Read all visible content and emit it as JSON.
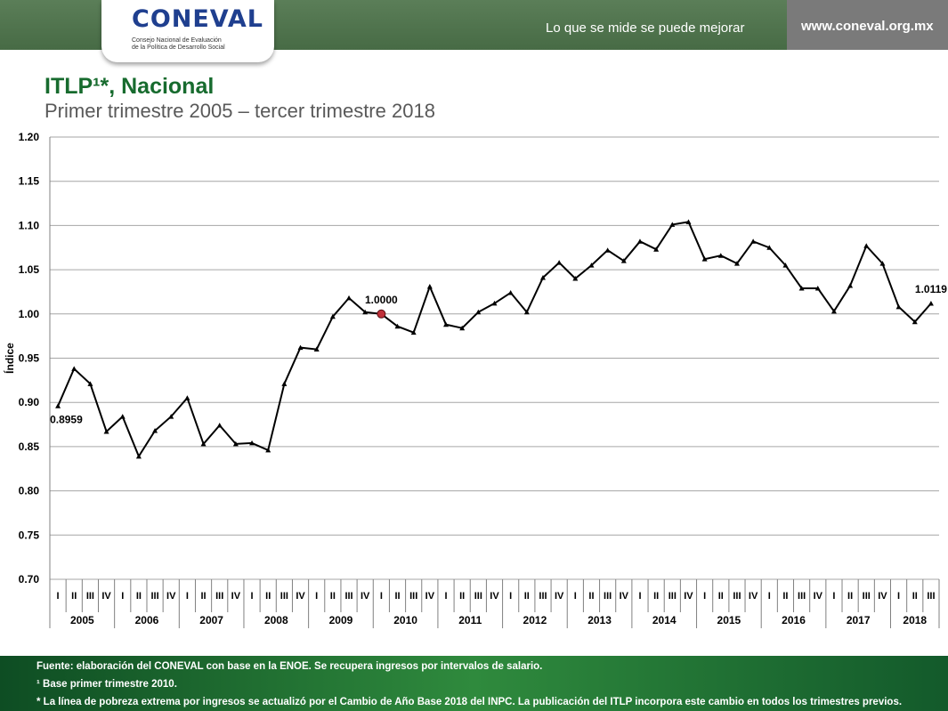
{
  "header": {
    "logo_text": "CONEVAL",
    "logo_subtitle_1": "Consejo Nacional de Evaluación",
    "logo_subtitle_2": "de la Política de Desarrollo Social",
    "slogan": "Lo que se mide se puede mejorar",
    "url": "www.coneval.org.mx",
    "colors": {
      "header_green": "#4f734d",
      "url_box": "#7a7a7a",
      "logo_blue": "#1f3f8f"
    }
  },
  "chart_data": {
    "type": "line",
    "title": "ITLP¹*, Nacional",
    "subtitle": "Primer trimestre 2005 – tercer trimestre 2018",
    "ylabel": "Índice",
    "xlabel": "",
    "ylim": [
      0.7,
      1.2
    ],
    "y_ticks": [
      "0.70",
      "0.75",
      "0.80",
      "0.85",
      "0.90",
      "0.95",
      "1.00",
      "1.05",
      "1.10",
      "1.15",
      "1.20"
    ],
    "grid": true,
    "quarter_labels": [
      "I",
      "II",
      "III",
      "IV"
    ],
    "years": [
      "2005",
      "2006",
      "2007",
      "2008",
      "2009",
      "2010",
      "2011",
      "2012",
      "2013",
      "2014",
      "2015",
      "2016",
      "2017",
      "2018"
    ],
    "values": [
      0.8959,
      0.938,
      0.921,
      0.867,
      0.884,
      0.839,
      0.868,
      0.884,
      0.905,
      0.853,
      0.874,
      0.853,
      0.854,
      0.846,
      0.921,
      0.962,
      0.96,
      0.997,
      1.018,
      1.002,
      1.0,
      0.986,
      0.979,
      1.031,
      0.988,
      0.984,
      1.002,
      1.012,
      1.024,
      1.002,
      1.041,
      1.058,
      1.04,
      1.055,
      1.072,
      1.06,
      1.082,
      1.073,
      1.101,
      1.104,
      1.062,
      1.066,
      1.057,
      1.082,
      1.075,
      1.055,
      1.029,
      1.029,
      1.003,
      1.032,
      1.077,
      1.057,
      1.008,
      0.991,
      1.0119
    ],
    "annotations": [
      {
        "index": 0,
        "text": "0.8959"
      },
      {
        "index": 20,
        "text": "1.0000"
      },
      {
        "index": 54,
        "text": "1.0119"
      }
    ],
    "highlight_index": 20,
    "colors": {
      "line": "#000000",
      "highlight": "#c0313a",
      "grid": "#a6a6a6"
    }
  },
  "footer": {
    "line1": "Fuente: elaboración del CONEVAL con base en la ENOE. Se recupera ingresos por intervalos de salario.",
    "line2": "¹ Base primer trimestre 2010.",
    "line3": "* La línea de pobreza extrema por ingresos se actualizó por el Cambio de Año Base 2018 del INPC. La publicación del ITLP incorpora este cambio en todos los trimestres previos."
  }
}
